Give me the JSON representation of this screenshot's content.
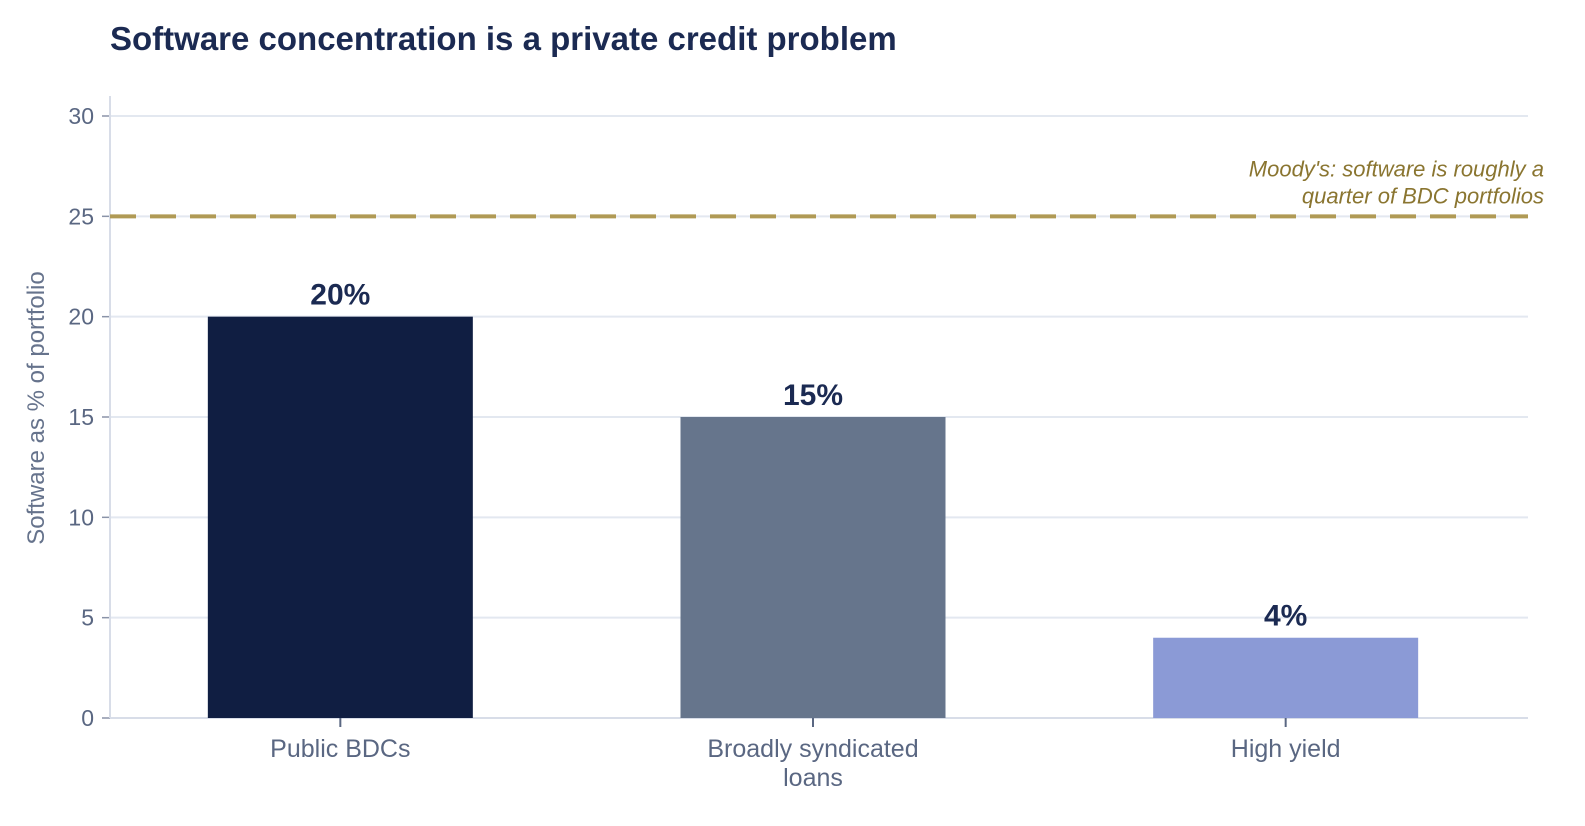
{
  "chart_data": {
    "type": "bar",
    "title": "Software concentration is a private credit problem",
    "xlabel": "",
    "ylabel": "Software as % of portfolio",
    "ylim": [
      0,
      30
    ],
    "yticks": [
      0,
      5,
      10,
      15,
      20,
      25,
      30
    ],
    "grid": true,
    "categories": [
      [
        "Public BDCs"
      ],
      [
        "Broadly syndicated",
        "loans"
      ],
      [
        "High yield"
      ]
    ],
    "values": [
      20,
      15,
      4
    ],
    "value_labels": [
      "20%",
      "15%",
      "4%"
    ],
    "bar_colors": [
      "#101e42",
      "#66758c",
      "#8b9ad6"
    ],
    "reference_line": {
      "value": 25,
      "color": "#b09a55",
      "style": "dashed",
      "annotation": [
        "Moody's: software is roughly a",
        "quarter of BDC portfolios"
      ]
    }
  },
  "colors": {
    "title": "#1b2a52",
    "grid": "#e3e8f0",
    "axis": "#d8dde8",
    "tick_text": "#5a6782",
    "annotation_text": "#8a7530"
  }
}
